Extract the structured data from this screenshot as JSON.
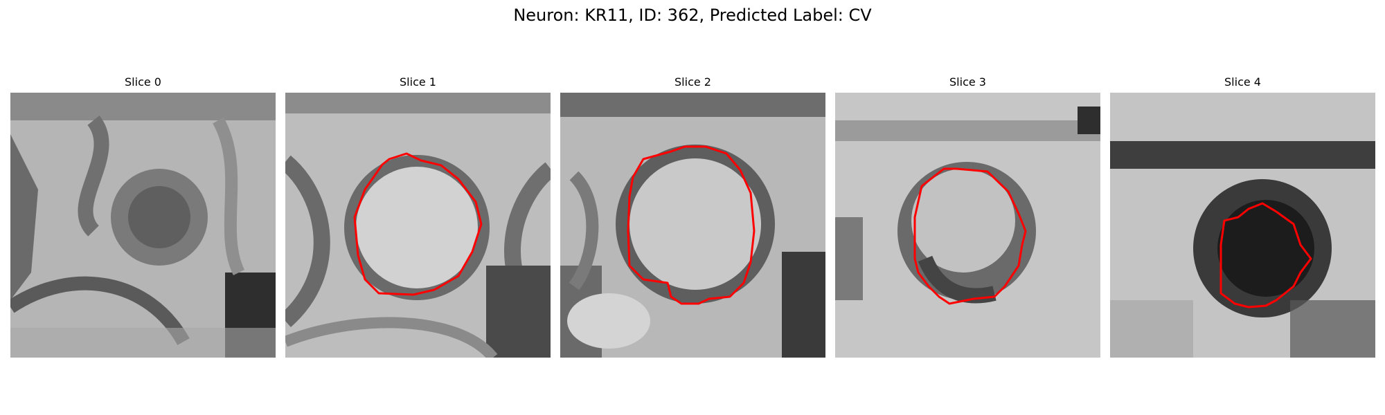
{
  "figure": {
    "title": "Neuron: KR11, ID: 362, Predicted Label: CV",
    "colormap": "grayscale",
    "contour_color": "#ff0000"
  },
  "panels": [
    {
      "title": "Slice 0",
      "image": "em-slice-0",
      "has_contour": false
    },
    {
      "title": "Slice 1",
      "image": "em-slice-1",
      "has_contour": true
    },
    {
      "title": "Slice 2",
      "image": "em-slice-2",
      "has_contour": true
    },
    {
      "title": "Slice 3",
      "image": "em-slice-3",
      "has_contour": true
    },
    {
      "title": "Slice 4",
      "image": "em-slice-4",
      "has_contour": true
    }
  ]
}
